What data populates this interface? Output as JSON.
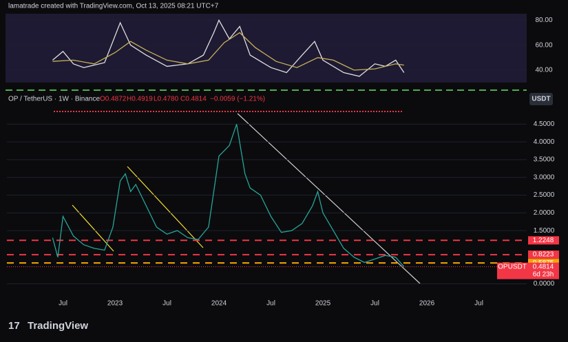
{
  "header": {
    "credit": "lamatrade created with TradingView.com, Oct 13, 2025 08:21 UTC+7",
    "brand": "TradingView",
    "currency": "USDT"
  },
  "chart_data": [
    {
      "type": "line",
      "xlim": [
        2021.96,
        2026.96
      ],
      "ylim": [
        30,
        85.6
      ],
      "yticks": [
        {
          "value": 80,
          "label": "80.00"
        },
        {
          "value": 60,
          "label": "60.00"
        },
        {
          "value": 40,
          "label": "40.00"
        }
      ],
      "series": [
        {
          "color": "#e0e0e0",
          "x": [
            2022.4,
            2022.5,
            2022.6,
            2022.7,
            2022.9,
            2023.05,
            2023.15,
            2023.3,
            2023.5,
            2023.7,
            2023.85,
            2023.95,
            2024.0,
            2024.1,
            2024.2,
            2024.3,
            2024.5,
            2024.65,
            2024.8,
            2024.92,
            2025.0,
            2025.2,
            2025.35,
            2025.5,
            2025.6,
            2025.7,
            2025.78
          ],
          "values": [
            48,
            55,
            45,
            42,
            46,
            78,
            60,
            52,
            43,
            45,
            52,
            70,
            80,
            65,
            75,
            52,
            42,
            38,
            52,
            63,
            48,
            38,
            35,
            45,
            43,
            48,
            38
          ]
        },
        {
          "color": "#c9b25a",
          "x": [
            2022.4,
            2022.6,
            2022.8,
            2023.0,
            2023.15,
            2023.3,
            2023.5,
            2023.7,
            2023.9,
            2024.05,
            2024.2,
            2024.35,
            2024.55,
            2024.75,
            2024.95,
            2025.1,
            2025.3,
            2025.5,
            2025.7,
            2025.78
          ],
          "values": [
            47,
            48,
            45,
            54,
            63,
            56,
            48,
            45,
            48,
            62,
            70,
            58,
            47,
            42,
            50,
            48,
            40,
            41,
            45,
            44
          ]
        }
      ]
    },
    {
      "type": "line",
      "symbol": "OP / TetherUS · 1W · Binance",
      "ohlc": [
        "O0.4872",
        "H0.4919",
        "L0.4780",
        "C0.4814",
        "−0.0059 (−1.21%)"
      ],
      "xlim": [
        2021.96,
        2026.96
      ],
      "ylim": [
        -0.34,
        5.09
      ],
      "xticks": [
        {
          "value": 2022.5,
          "label": "Jul"
        },
        {
          "value": 2023,
          "label": "2023"
        },
        {
          "value": 2023.5,
          "label": "Jul"
        },
        {
          "value": 2024,
          "label": "2024"
        },
        {
          "value": 2024.5,
          "label": "Jul"
        },
        {
          "value": 2025,
          "label": "2025"
        },
        {
          "value": 2025.5,
          "label": "Jul"
        },
        {
          "value": 2026,
          "label": "2026"
        },
        {
          "value": 2026.5,
          "label": "Jul"
        }
      ],
      "yticks": [
        {
          "value": 4.5,
          "label": "4.5000"
        },
        {
          "value": 4,
          "label": "4.0000"
        },
        {
          "value": 3.5,
          "label": "3.5000"
        },
        {
          "value": 3,
          "label": "3.0000"
        },
        {
          "value": 2.5,
          "label": "2.5000"
        },
        {
          "value": 2,
          "label": "2.0000"
        },
        {
          "value": 1.5,
          "label": "1.5000"
        },
        {
          "value": 0,
          "label": "0.0000"
        }
      ],
      "series": [
        {
          "color": "#26a69a",
          "x": [
            2022.4,
            2022.45,
            2022.5,
            2022.6,
            2022.7,
            2022.8,
            2022.9,
            2022.98,
            2023.05,
            2023.1,
            2023.15,
            2023.2,
            2023.3,
            2023.4,
            2023.5,
            2023.6,
            2023.7,
            2023.8,
            2023.9,
            2023.95,
            2024.0,
            2024.1,
            2024.17,
            2024.25,
            2024.3,
            2024.4,
            2024.5,
            2024.6,
            2024.7,
            2024.8,
            2024.9,
            2024.95,
            2025.0,
            2025.1,
            2025.2,
            2025.3,
            2025.4,
            2025.5,
            2025.6,
            2025.7,
            2025.78
          ],
          "values": [
            1.3,
            0.75,
            1.9,
            1.35,
            1.1,
            1.0,
            0.95,
            1.6,
            2.9,
            3.1,
            2.6,
            2.8,
            2.2,
            1.6,
            1.4,
            1.5,
            1.3,
            1.25,
            1.6,
            2.6,
            3.6,
            3.9,
            4.5,
            3.1,
            2.7,
            2.5,
            1.9,
            1.45,
            1.5,
            1.7,
            2.2,
            2.6,
            2.0,
            1.5,
            1.0,
            0.75,
            0.6,
            0.7,
            0.8,
            0.75,
            0.4814
          ]
        }
      ],
      "levels": [
        {
          "value": 1.2248,
          "color": "#f23645"
        },
        {
          "value": 0.8223,
          "color": "#f23645"
        },
        {
          "value": 0.5875,
          "color": "#f7a600"
        }
      ],
      "last": {
        "label": "OPUSDT",
        "value": 0.4814,
        "countdown": "6d 23h",
        "color": "#f23645"
      }
    }
  ]
}
